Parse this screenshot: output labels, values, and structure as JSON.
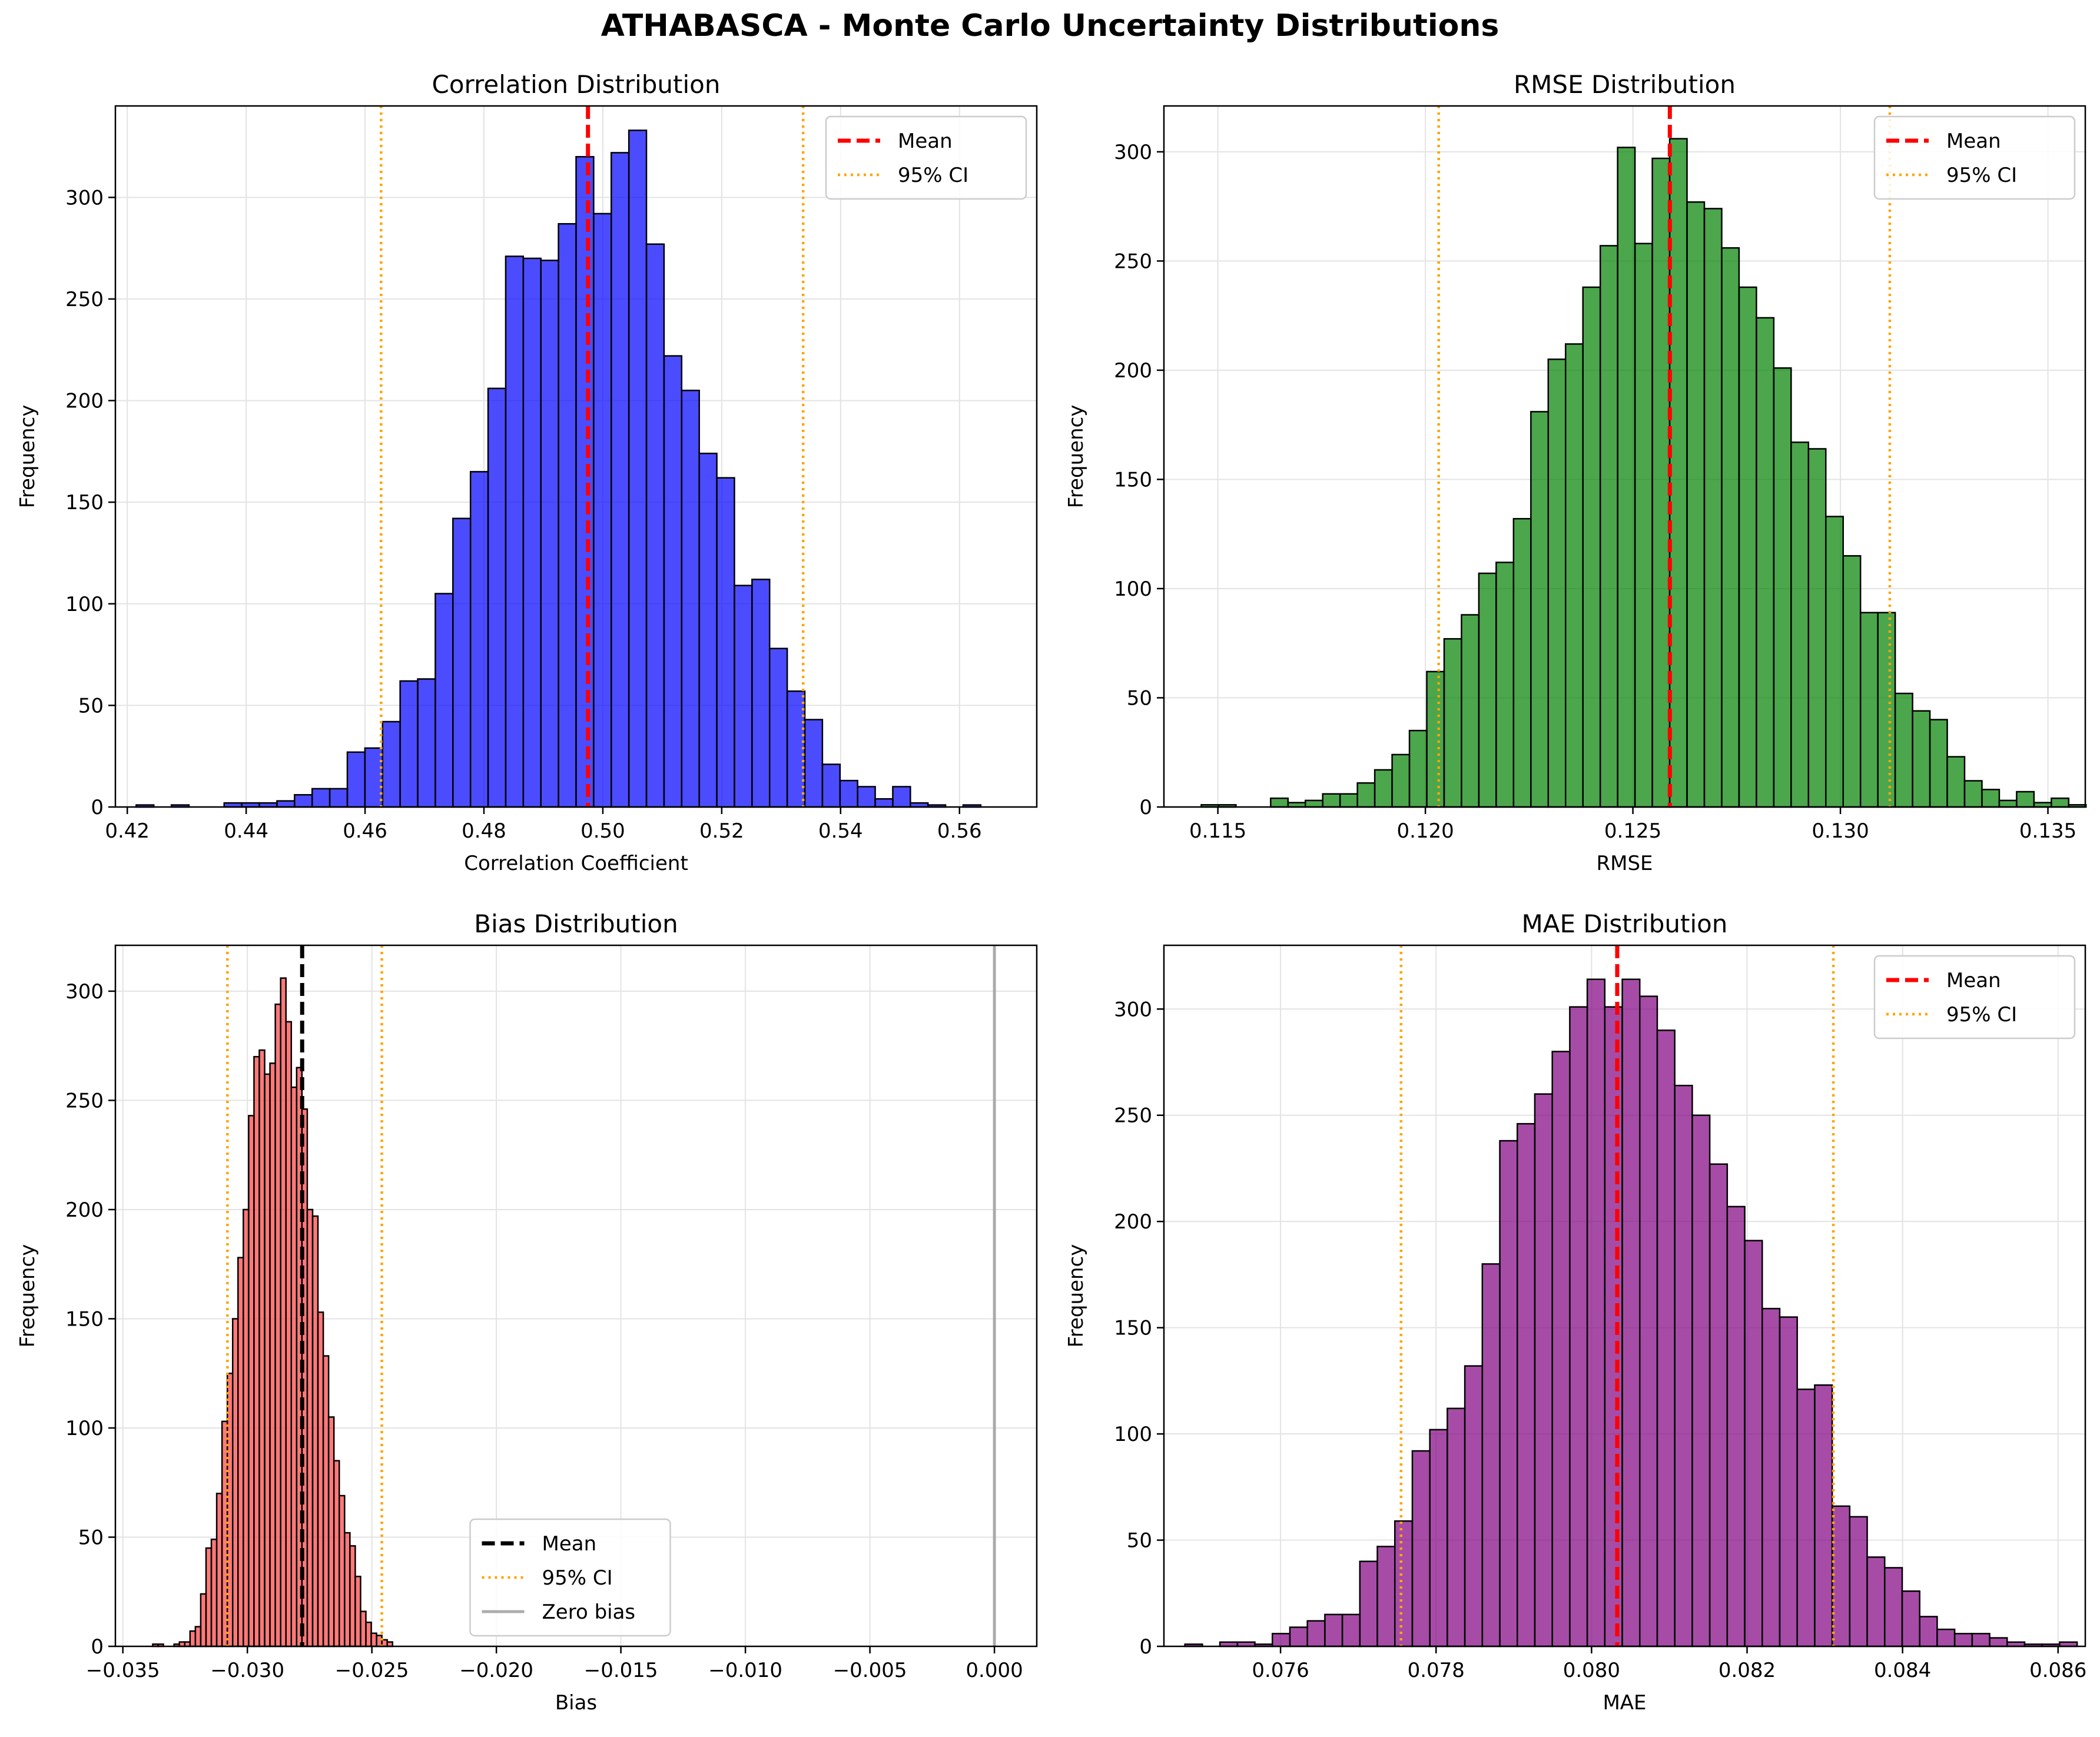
{
  "figure": {
    "title": "ATHABASCA - Monte Carlo Uncertainty Distributions"
  },
  "chart_data": [
    {
      "type": "bar",
      "subtype": "histogram",
      "title": "Correlation Distribution",
      "xlabel": "Correlation Coefficient",
      "ylabel": "Frequency",
      "xlim": [
        0.418,
        0.573
      ],
      "ylim": [
        0,
        345
      ],
      "xticks": [
        0.42,
        0.44,
        0.46,
        0.48,
        0.5,
        0.52,
        0.54,
        0.56
      ],
      "xtick_labels": [
        "0.42",
        "0.44",
        "0.46",
        "0.48",
        "0.50",
        "0.52",
        "0.54",
        "0.56"
      ],
      "yticks": [
        0,
        50,
        100,
        150,
        200,
        250,
        300
      ],
      "ytick_labels": [
        "0",
        "50",
        "100",
        "150",
        "200",
        "250",
        "300"
      ],
      "grid": true,
      "bar_color": "#0000ff",
      "bin_start": 0.4215,
      "bin_width": 0.00296,
      "counts": [
        1,
        0,
        1,
        0,
        0,
        2,
        2,
        2,
        3,
        6,
        9,
        9,
        27,
        29,
        42,
        62,
        63,
        105,
        142,
        165,
        206,
        271,
        270,
        269,
        287,
        320,
        292,
        322,
        333,
        277,
        222,
        205,
        174,
        162,
        109,
        112,
        78,
        57,
        43,
        21,
        13,
        10,
        4,
        10,
        2,
        1,
        0,
        1
      ],
      "mean": 0.4975,
      "ci": [
        0.4627,
        0.5337
      ],
      "series": [
        {
          "name": "Mean",
          "style": "dashed",
          "color": "#ff0000"
        },
        {
          "name": "95% CI",
          "style": "dotted",
          "color": "#ffa500"
        }
      ],
      "legend_position": "upper right"
    },
    {
      "type": "bar",
      "subtype": "histogram",
      "title": "RMSE Distribution",
      "xlabel": "RMSE",
      "ylabel": "Frequency",
      "xlim": [
        0.1137,
        0.1359
      ],
      "ylim": [
        0,
        321
      ],
      "xticks": [
        0.115,
        0.12,
        0.125,
        0.13,
        0.135
      ],
      "xtick_labels": [
        "0.115",
        "0.120",
        "0.125",
        "0.130",
        "0.135"
      ],
      "yticks": [
        0,
        50,
        100,
        150,
        200,
        250,
        300
      ],
      "ytick_labels": [
        "0",
        "50",
        "100",
        "150",
        "200",
        "250",
        "300"
      ],
      "grid": true,
      "bar_color": "#008000",
      "bin_start": 0.1146,
      "bin_width": 0.000418,
      "counts": [
        1,
        1,
        0,
        0,
        4,
        2,
        3,
        6,
        6,
        11,
        17,
        24,
        35,
        62,
        77,
        88,
        107,
        112,
        132,
        181,
        205,
        212,
        238,
        257,
        302,
        258,
        297,
        306,
        277,
        274,
        256,
        238,
        224,
        201,
        167,
        164,
        133,
        115,
        89,
        89,
        52,
        44,
        40,
        23,
        12,
        8,
        3,
        7,
        2,
        4,
        1
      ],
      "mean": 0.12589,
      "ci": [
        0.12032,
        0.13119
      ],
      "series": [
        {
          "name": "Mean",
          "style": "dashed",
          "color": "#ff0000"
        },
        {
          "name": "95% CI",
          "style": "dotted",
          "color": "#ffa500"
        }
      ],
      "legend_position": "upper right"
    },
    {
      "type": "bar",
      "subtype": "histogram",
      "title": "Bias Distribution",
      "xlabel": "Bias",
      "ylabel": "Frequency",
      "xlim": [
        -0.0353,
        0.0017
      ],
      "ylim": [
        0,
        321
      ],
      "xticks": [
        -0.035,
        -0.03,
        -0.025,
        -0.02,
        -0.015,
        -0.01,
        -0.005,
        0.0
      ],
      "xtick_labels": [
        "−0.035",
        "−0.030",
        "−0.025",
        "−0.020",
        "−0.015",
        "−0.010",
        "−0.005",
        "0.000"
      ],
      "yticks": [
        0,
        50,
        100,
        150,
        200,
        250,
        300
      ],
      "ytick_labels": [
        "0",
        "50",
        "100",
        "150",
        "200",
        "250",
        "300"
      ],
      "grid": true,
      "bar_color": "#ff4040",
      "bin_start": -0.0338,
      "bin_width": 0.000214,
      "counts": [
        1,
        1,
        0,
        0,
        1,
        2,
        2,
        7,
        9,
        24,
        45,
        49,
        70,
        103,
        125,
        150,
        178,
        200,
        243,
        270,
        273,
        262,
        267,
        294,
        306,
        286,
        256,
        265,
        246,
        200,
        197,
        153,
        133,
        105,
        85,
        69,
        52,
        46,
        32,
        16,
        11,
        6,
        5,
        3,
        2
      ],
      "mean": -0.0278,
      "ci": [
        -0.0308,
        -0.0246
      ],
      "zero_line": 0.0,
      "series": [
        {
          "name": "Mean",
          "style": "dashed",
          "color": "#000000"
        },
        {
          "name": "95% CI",
          "style": "dotted",
          "color": "#ffa500"
        },
        {
          "name": "Zero bias",
          "style": "solid",
          "color": "#999999"
        }
      ],
      "legend_position": "lower center"
    },
    {
      "type": "bar",
      "subtype": "histogram",
      "title": "MAE Distribution",
      "xlabel": "MAE",
      "ylabel": "Frequency",
      "xlim": [
        0.0745,
        0.08635
      ],
      "ylim": [
        0,
        330
      ],
      "xticks": [
        0.076,
        0.078,
        0.08,
        0.082,
        0.084,
        0.086
      ],
      "xtick_labels": [
        "0.076",
        "0.078",
        "0.080",
        "0.082",
        "0.084",
        "0.086"
      ],
      "yticks": [
        0,
        50,
        100,
        150,
        200,
        250,
        300
      ],
      "ytick_labels": [
        "0",
        "50",
        "100",
        "150",
        "200",
        "250",
        "300"
      ],
      "grid": true,
      "bar_color": "#800080",
      "bin_start": 0.07477,
      "bin_width": 0.000225,
      "counts": [
        1,
        0,
        2,
        2,
        1,
        6,
        9,
        12,
        15,
        15,
        40,
        47,
        59,
        92,
        102,
        112,
        132,
        180,
        238,
        246,
        260,
        280,
        301,
        314,
        301,
        314,
        306,
        290,
        264,
        250,
        227,
        207,
        191,
        159,
        155,
        121,
        123,
        66,
        61,
        42,
        37,
        26,
        14,
        8,
        6,
        6,
        4,
        2,
        1,
        1,
        2
      ],
      "mean": 0.08033,
      "ci": [
        0.07755,
        0.08311
      ],
      "series": [
        {
          "name": "Mean",
          "style": "dashed",
          "color": "#ff0000"
        },
        {
          "name": "95% CI",
          "style": "dotted",
          "color": "#ffa500"
        }
      ],
      "legend_position": "upper right"
    }
  ]
}
